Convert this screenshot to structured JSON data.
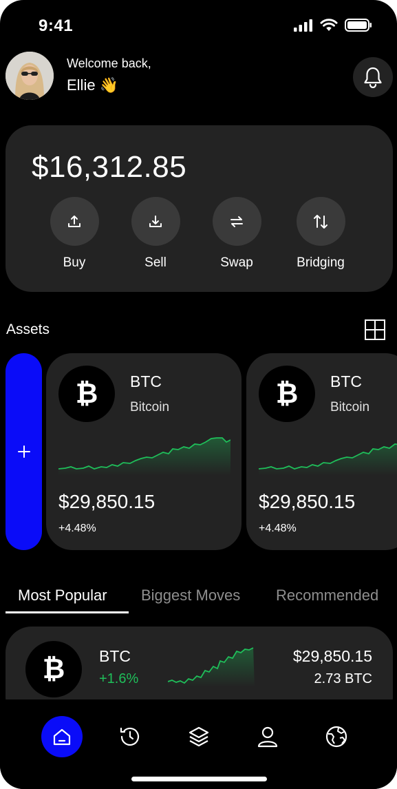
{
  "status_bar": {
    "time": "9:41"
  },
  "header": {
    "greeting": "Welcome back,",
    "name": "Ellie 👋"
  },
  "balance": {
    "amount": "$16,312.85",
    "actions": [
      {
        "label": "Buy",
        "icon": "upload-icon"
      },
      {
        "label": "Sell",
        "icon": "download-icon"
      },
      {
        "label": "Swap",
        "icon": "swap-icon"
      },
      {
        "label": "Bridging",
        "icon": "bridge-arrows-icon"
      }
    ]
  },
  "assets": {
    "title": "Assets",
    "cards": [
      {
        "symbol": "BTC",
        "name": "Bitcoin",
        "price": "$29,850.15",
        "change": "+4.48%",
        "coin_glyph": "₿"
      },
      {
        "symbol": "BTC",
        "name": "Bitcoin",
        "price": "$29,850.15",
        "change": "+4.48%",
        "coin_glyph": "₿"
      }
    ]
  },
  "tabs": [
    {
      "label": "Most Popular",
      "active": true
    },
    {
      "label": "Biggest Moves",
      "active": false
    },
    {
      "label": "Recommended",
      "active": false
    }
  ],
  "list": [
    {
      "symbol": "BTC",
      "change": "+1.6%",
      "price": "$29,850.15",
      "holding": "2.73 BTC",
      "coin_glyph": "₿"
    }
  ],
  "colors": {
    "accent": "#0a0cf8",
    "positive": "#1fbf5a",
    "card": "#232323",
    "background": "#000000"
  },
  "nav": [
    "home-icon",
    "history-icon",
    "layers-icon",
    "user-icon",
    "globe-icon"
  ]
}
